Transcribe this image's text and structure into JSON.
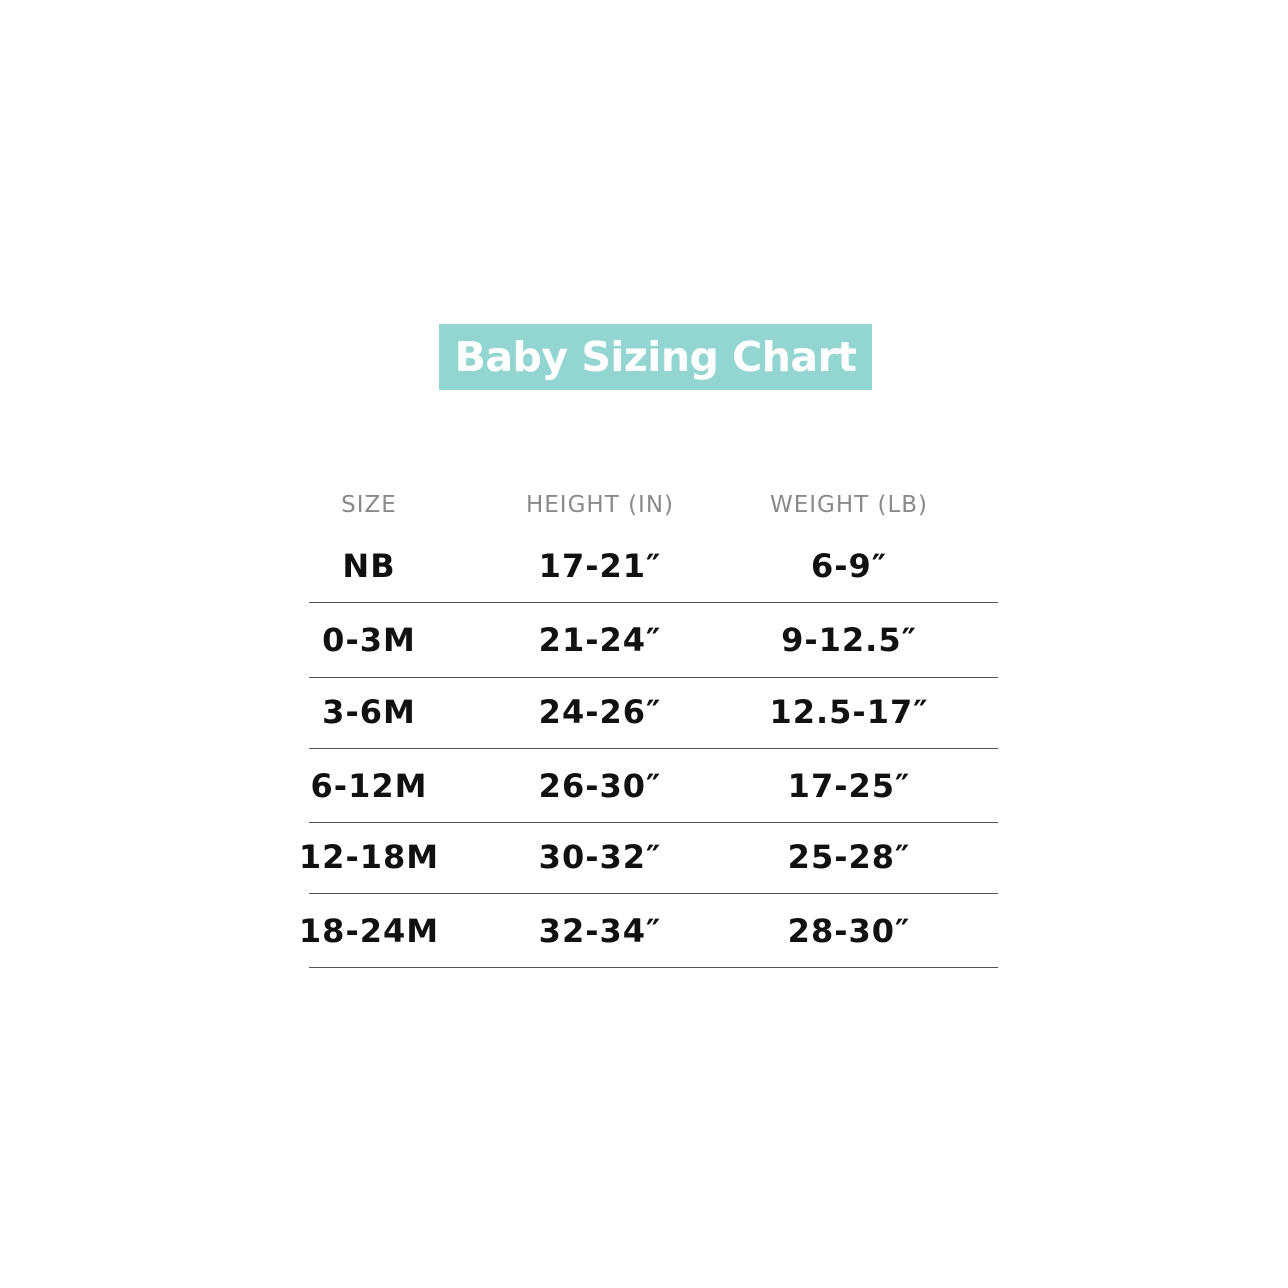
{
  "title": "Baby Sizing Chart",
  "colors": {
    "banner": "#93d5d1",
    "title_text": "#ffffff",
    "header_text": "#8a8a8a",
    "cell_text": "#111111"
  },
  "chart_data": {
    "type": "table",
    "columns": [
      "SIZE",
      "HEIGHT (IN)",
      "WEIGHT (LB)"
    ],
    "rows": [
      [
        "NB",
        "17-21″",
        "6-9″"
      ],
      [
        "0-3M",
        "21-24″",
        "9-12.5″"
      ],
      [
        "3-6M",
        "24-26″",
        "12.5-17″"
      ],
      [
        "6-12M",
        "26-30″",
        "17-25″"
      ],
      [
        "12-18M",
        "30-32″",
        "25-28″"
      ],
      [
        "18-24M",
        "32-34″",
        "28-30″"
      ]
    ]
  }
}
